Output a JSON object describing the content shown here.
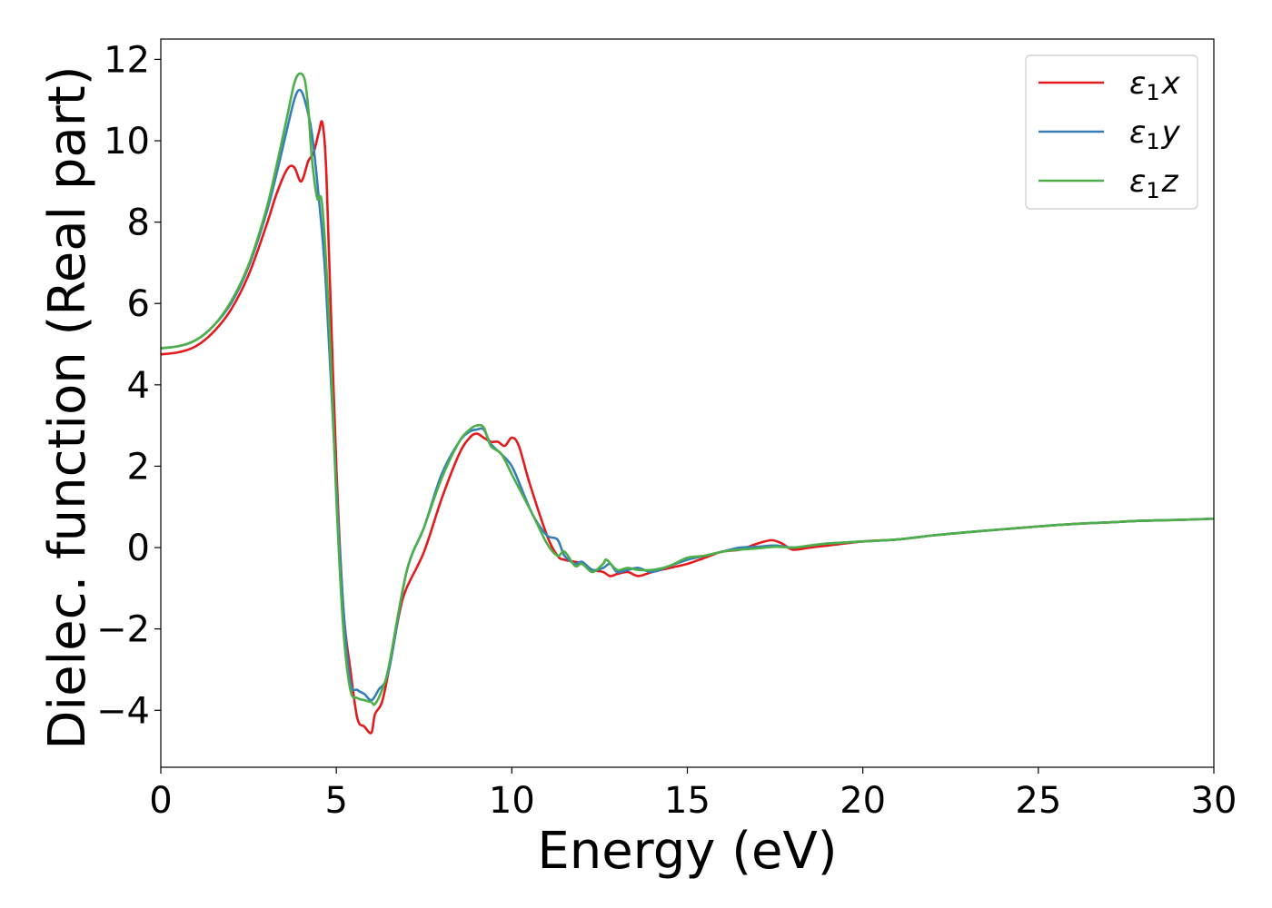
{
  "chart_data": {
    "type": "line",
    "title": "",
    "xlabel": "Energy (eV)",
    "ylabel": "Dielec. function (Real part)",
    "xlim": [
      0,
      30
    ],
    "ylim": [
      -5.4,
      12.5
    ],
    "xticks": [
      0,
      5,
      10,
      15,
      20,
      25,
      30
    ],
    "xtick_labels": [
      "0",
      "5",
      "10",
      "15",
      "20",
      "25",
      "30"
    ],
    "yticks": [
      -4,
      -2,
      0,
      2,
      4,
      6,
      8,
      10,
      12
    ],
    "ytick_labels": [
      "−4",
      "−2",
      "0",
      "2",
      "4",
      "6",
      "8",
      "10",
      "12"
    ],
    "grid": false,
    "legend_position": "top-right",
    "series": [
      {
        "name": "ε₁x",
        "legend_base": "ε",
        "legend_sub": "1",
        "legend_var": "x",
        "color": "#e41a1c",
        "x": [
          0,
          0.5,
          1,
          1.5,
          2,
          2.5,
          3,
          3.3,
          3.6,
          3.8,
          4.0,
          4.2,
          4.35,
          4.5,
          4.6,
          4.7,
          4.8,
          5.0,
          5.2,
          5.4,
          5.6,
          5.8,
          6.0,
          6.1,
          6.3,
          6.5,
          6.8,
          7.0,
          7.5,
          8.0,
          8.5,
          8.8,
          9.0,
          9.2,
          9.4,
          9.6,
          9.8,
          10.0,
          10.2,
          10.5,
          11.0,
          11.3,
          11.5,
          11.8,
          12.0,
          12.3,
          12.6,
          12.8,
          13.0,
          13.3,
          13.6,
          14.0,
          14.5,
          15.0,
          15.5,
          16.0,
          16.5,
          17.0,
          17.4,
          17.7,
          18.0,
          18.5,
          19,
          20,
          21,
          22,
          23,
          24,
          25,
          26,
          27,
          28,
          29,
          30
        ],
        "y": [
          4.75,
          4.8,
          4.95,
          5.3,
          5.85,
          6.7,
          7.9,
          8.7,
          9.3,
          9.35,
          9.0,
          9.5,
          9.7,
          10.2,
          10.45,
          9.5,
          7.0,
          2.0,
          -1.5,
          -3.0,
          -4.2,
          -4.4,
          -4.55,
          -4.1,
          -3.8,
          -3.0,
          -1.6,
          -1.0,
          -0.1,
          1.2,
          2.3,
          2.7,
          2.8,
          2.7,
          2.6,
          2.6,
          2.5,
          2.7,
          2.5,
          1.6,
          0.3,
          -0.2,
          -0.3,
          -0.35,
          -0.4,
          -0.55,
          -0.6,
          -0.7,
          -0.65,
          -0.6,
          -0.7,
          -0.6,
          -0.5,
          -0.4,
          -0.25,
          -0.1,
          -0.05,
          0.1,
          0.18,
          0.1,
          -0.05,
          0.0,
          0.05,
          0.15,
          0.2,
          0.3,
          0.38,
          0.45,
          0.52,
          0.58,
          0.62,
          0.66,
          0.68,
          0.71
        ]
      },
      {
        "name": "ε₁y",
        "legend_base": "ε",
        "legend_sub": "1",
        "legend_var": "y",
        "color": "#377eb8",
        "x": [
          0,
          0.5,
          1,
          1.5,
          2,
          2.5,
          3,
          3.3,
          3.6,
          3.8,
          3.95,
          4.1,
          4.3,
          4.5,
          4.7,
          5.0,
          5.2,
          5.4,
          5.6,
          5.8,
          6.0,
          6.2,
          6.5,
          7.0,
          7.5,
          8.0,
          8.5,
          8.8,
          9.0,
          9.2,
          9.4,
          9.7,
          10.0,
          10.3,
          10.6,
          11.0,
          11.3,
          11.5,
          11.8,
          12.0,
          12.3,
          12.6,
          12.8,
          13.0,
          13.3,
          13.6,
          14.0,
          14.5,
          15.0,
          15.5,
          16.0,
          16.5,
          17.0,
          17.5,
          18.0,
          18.5,
          19,
          20,
          21,
          22,
          23,
          24,
          25,
          26,
          27,
          28,
          29,
          30
        ],
        "y": [
          4.9,
          4.95,
          5.1,
          5.45,
          6.0,
          6.9,
          8.2,
          9.2,
          10.3,
          11.0,
          11.25,
          11.0,
          10.2,
          8.6,
          6.5,
          1.5,
          -1.5,
          -3.3,
          -3.5,
          -3.6,
          -3.75,
          -3.5,
          -3.0,
          -0.6,
          0.5,
          1.8,
          2.6,
          2.85,
          2.9,
          2.9,
          2.55,
          2.3,
          2.0,
          1.4,
          0.8,
          0.3,
          0.2,
          -0.2,
          -0.4,
          -0.35,
          -0.55,
          -0.5,
          -0.4,
          -0.6,
          -0.55,
          -0.5,
          -0.6,
          -0.45,
          -0.3,
          -0.2,
          -0.1,
          0.0,
          0.02,
          0.05,
          0.0,
          0.05,
          0.1,
          0.15,
          0.2,
          0.3,
          0.38,
          0.45,
          0.52,
          0.58,
          0.62,
          0.66,
          0.68,
          0.71
        ]
      },
      {
        "name": "ε₁z",
        "legend_base": "ε",
        "legend_sub": "1",
        "legend_var": "z",
        "color": "#4daf4a",
        "x": [
          0,
          0.5,
          1,
          1.5,
          2,
          2.5,
          3,
          3.3,
          3.6,
          3.8,
          3.95,
          4.1,
          4.2,
          4.3,
          4.45,
          4.6,
          4.8,
          5.0,
          5.2,
          5.4,
          5.6,
          5.8,
          6.0,
          6.1,
          6.3,
          6.5,
          7.0,
          7.5,
          8.0,
          8.5,
          8.8,
          9.0,
          9.2,
          9.4,
          9.7,
          10.0,
          10.3,
          10.6,
          11.0,
          11.3,
          11.5,
          11.8,
          12.0,
          12.3,
          12.6,
          12.7,
          13.0,
          13.3,
          13.6,
          14.0,
          14.5,
          15.0,
          15.5,
          16.0,
          16.5,
          17.0,
          17.5,
          18.0,
          18.5,
          19,
          20,
          21,
          22,
          23,
          24,
          25,
          26,
          27,
          28,
          29,
          30
        ],
        "y": [
          4.9,
          4.95,
          5.1,
          5.45,
          6.05,
          6.95,
          8.3,
          9.4,
          10.6,
          11.4,
          11.65,
          11.5,
          10.8,
          9.6,
          8.6,
          8.4,
          5.5,
          1.2,
          -2.0,
          -3.5,
          -3.7,
          -3.75,
          -3.8,
          -3.85,
          -3.5,
          -2.9,
          -0.6,
          0.5,
          1.7,
          2.6,
          2.9,
          3.0,
          2.95,
          2.5,
          2.3,
          1.8,
          1.3,
          0.8,
          0.1,
          -0.2,
          -0.1,
          -0.45,
          -0.4,
          -0.6,
          -0.4,
          -0.3,
          -0.55,
          -0.5,
          -0.55,
          -0.55,
          -0.45,
          -0.25,
          -0.2,
          -0.1,
          -0.05,
          -0.02,
          0.02,
          0.0,
          0.05,
          0.1,
          0.15,
          0.2,
          0.3,
          0.38,
          0.45,
          0.52,
          0.58,
          0.62,
          0.66,
          0.68,
          0.71
        ]
      }
    ]
  }
}
